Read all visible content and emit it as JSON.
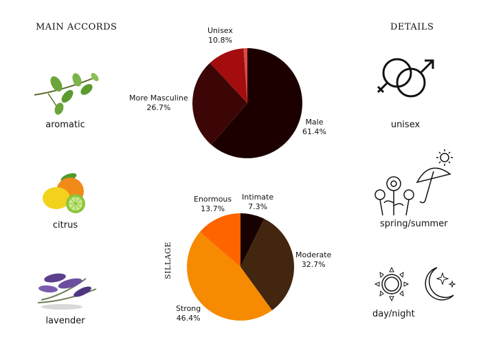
{
  "headings": {
    "main_accords": "MAIN ACCORDS",
    "details": "DETAILS"
  },
  "accords": [
    {
      "label": "aromatic",
      "icon": "herb-sprig-icon"
    },
    {
      "label": "citrus",
      "icon": "citrus-fruit-icon"
    },
    {
      "label": "lavender",
      "icon": "lavender-flower-icon"
    }
  ],
  "details": [
    {
      "label": "unisex",
      "icon": "gender-symbols-icon"
    },
    {
      "label": "spring/summer",
      "icon": "flowers-umbrella-sun-icon"
    },
    {
      "label": "day/night",
      "icon": "sun-moon-icon"
    }
  ],
  "sillage_label": "SILLAGE",
  "chart_data": [
    {
      "type": "pie",
      "title": "",
      "slices": [
        {
          "name": "Male",
          "value": 61.4,
          "pct": "61.4%",
          "color": "#1c0000"
        },
        {
          "name": "More Masculine",
          "value": 26.7,
          "pct": "26.7%",
          "color": "#3d0606"
        },
        {
          "name": "Unisex",
          "value": 10.8,
          "pct": "10.8%",
          "color": "#a40d0d"
        },
        {
          "name": "",
          "value": 1.1,
          "pct": "",
          "color": "#e04848"
        }
      ]
    },
    {
      "type": "pie",
      "title": "SILLAGE",
      "slices": [
        {
          "name": "Intimate",
          "value": 7.3,
          "pct": "7.3%",
          "color": "#180101"
        },
        {
          "name": "Moderate",
          "value": 32.7,
          "pct": "32.7%",
          "color": "#422610"
        },
        {
          "name": "Strong",
          "value": 46.4,
          "pct": "46.4%",
          "color": "#f68a00"
        },
        {
          "name": "Enormous",
          "value": 13.7,
          "pct": "13.7%",
          "color": "#fe6500"
        }
      ]
    }
  ]
}
